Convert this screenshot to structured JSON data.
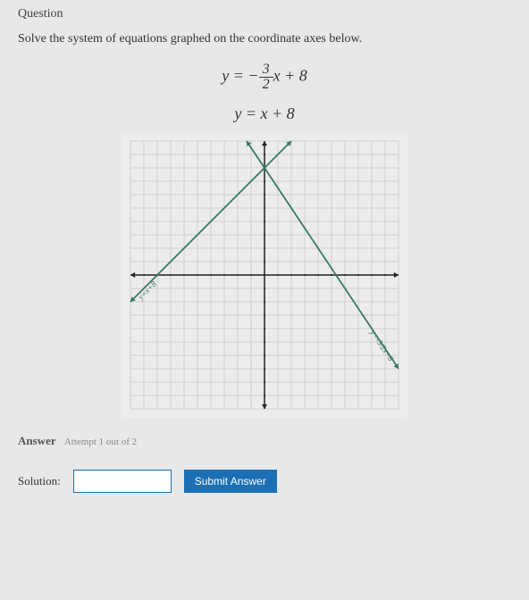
{
  "heading": "Question",
  "prompt": "Solve the system of equations graphed on the coordinate axes below.",
  "eq1_lhs": "y = −",
  "eq1_num": "3",
  "eq1_den": "2",
  "eq1_rhs": "x + 8",
  "eq2": "y = x + 8",
  "graph": {
    "size": 300,
    "xlim": [
      -10,
      10
    ],
    "ylim": [
      -10,
      10
    ],
    "grid_step": 1,
    "background": "#ececec",
    "grid_color": "#cfcfcf",
    "axis_color": "#222222",
    "line_color": "#3a7a60",
    "line1": {
      "slope": -1.5,
      "intercept": 8,
      "label": "y=-3/2x+8"
    },
    "line2": {
      "slope": 1,
      "intercept": 8,
      "label": "y=x+8"
    }
  },
  "answer_label": "Answer",
  "attempt_text": "Attempt 1 out of 2",
  "solution_label": "Solution:",
  "solution_value": "",
  "submit_label": "Submit Answer"
}
